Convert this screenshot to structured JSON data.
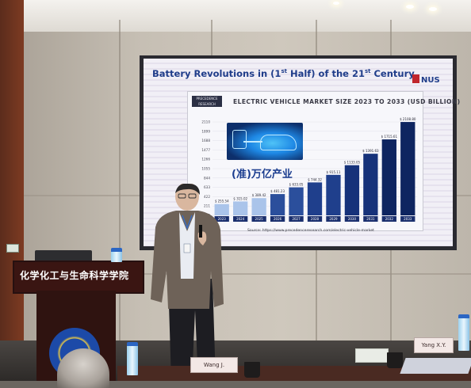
{
  "slide": {
    "title": "Battery Revolutions in (1st Half) of the 21st Century",
    "logo_text": "NUS",
    "publisher_logo": "PRECEDENCE RESEARCH",
    "chart_title": "ELECTRIC VEHICLE MARKET SIZE 2023 TO 2033 (USD BILLION)",
    "overlay_label": "(准)万亿产业",
    "source": "Source: https://www.precedenceresearch.com/electric-vehicle-market"
  },
  "chart_data": {
    "type": "bar",
    "title": "ELECTRIC VEHICLE MARKET SIZE 2023 TO 2033 (USD BILLION)",
    "categories": [
      "2023",
      "2024",
      "2025",
      "2026",
      "2027",
      "2028",
      "2029",
      "2030",
      "2031",
      "2032",
      "2033"
    ],
    "values": [
      255.54,
      315.02,
      389.42,
      481.23,
      633.05,
      744.32,
      915.11,
      1133.05,
      1391.63,
      1715.61,
      2108.8
    ],
    "value_labels": [
      "$ 255.54",
      "$ 315.02",
      "$ 389.42",
      "$ 481.23",
      "$ 633.05",
      "$ 744.32",
      "$ 915.11",
      "$ 1133.05",
      "$ 1391.63",
      "$ 1715.61",
      "$ 2108.80"
    ],
    "yticks": [
      "0",
      "211",
      "422",
      "633",
      "844",
      "1055",
      "1266",
      "1477",
      "1688",
      "1899",
      "2110"
    ],
    "ylim": [
      0,
      2110
    ],
    "bar_colors": [
      "#aac4ea",
      "#aac4ea",
      "#aac4ea",
      "#2b4f9c",
      "#2b4f9c",
      "#1f3f8c",
      "#1f3f8c",
      "#16327a",
      "#16327a",
      "#0e2560",
      "#0e2560"
    ],
    "grid": true
  },
  "podium": {
    "text": "化学化工与生命科学学院"
  },
  "nameplates": [
    "Wang J.",
    "Yang X.Y."
  ]
}
